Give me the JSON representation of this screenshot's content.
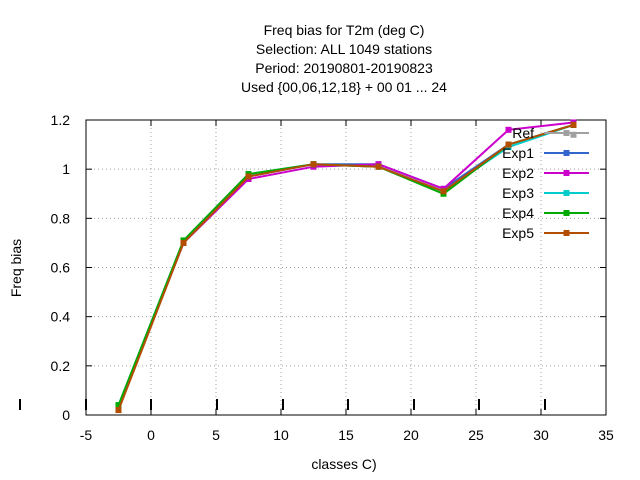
{
  "chart_data": {
    "type": "line",
    "title_lines": [
      "Freq bias  for T2m (deg C)",
      "Selection: ALL    1049 stations",
      "Period: 20190801-20190823",
      "Used {00,06,12,18} + 00 01 ... 24"
    ],
    "xlabel": "classes C)",
    "ylabel": "Freq bias",
    "xlim": [
      -5,
      35
    ],
    "ylim": [
      0,
      1.2
    ],
    "xticks": [
      -5,
      0,
      5,
      10,
      15,
      20,
      25,
      30,
      35
    ],
    "yticks": [
      0,
      0.2,
      0.4,
      0.6,
      0.8,
      1,
      1.2
    ],
    "grid": true,
    "legend_position": "top-right",
    "x": [
      -2.5,
      2.5,
      7.5,
      12.5,
      17.5,
      22.5,
      27.5,
      32.5
    ],
    "series": [
      {
        "name": "Ref",
        "color": "#a0a0a0",
        "values": [
          null,
          null,
          null,
          null,
          null,
          null,
          null,
          1.14
        ]
      },
      {
        "name": "Exp1",
        "color": "#3366cc",
        "values": [
          0.03,
          0.7,
          0.97,
          1.02,
          1.02,
          0.92,
          1.1,
          1.18
        ]
      },
      {
        "name": "Exp2",
        "color": "#cc00cc",
        "values": [
          0.03,
          0.7,
          0.96,
          1.01,
          1.02,
          0.92,
          1.16,
          1.19
        ]
      },
      {
        "name": "Exp3",
        "color": "#00cccc",
        "values": [
          0.04,
          0.71,
          0.98,
          1.02,
          1.01,
          0.91,
          1.09,
          1.18
        ]
      },
      {
        "name": "Exp4",
        "color": "#00aa00",
        "values": [
          0.04,
          0.71,
          0.98,
          1.02,
          1.01,
          0.9,
          1.1,
          1.18
        ]
      },
      {
        "name": "Exp5",
        "color": "#b34d00",
        "values": [
          0.02,
          0.7,
          0.97,
          1.02,
          1.01,
          0.91,
          1.1,
          1.18
        ]
      }
    ]
  }
}
